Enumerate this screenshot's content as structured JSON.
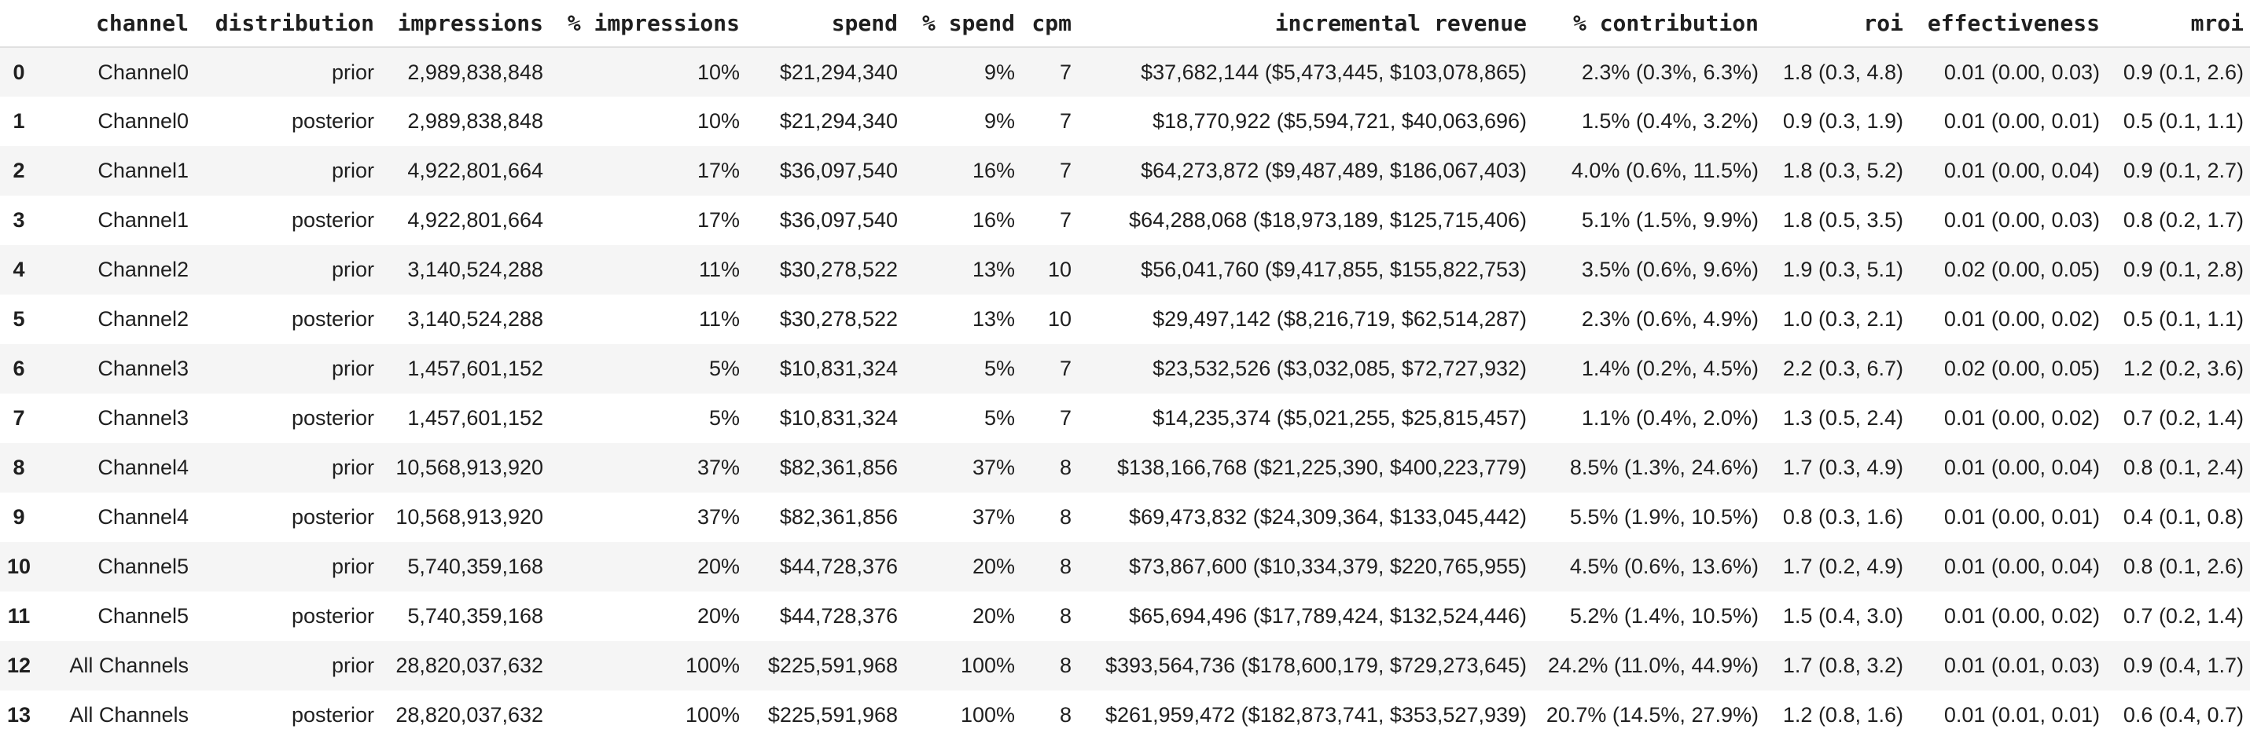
{
  "colors": {
    "text": "#1f1f1f",
    "row_stripe": "#f5f5f5",
    "header_border": "#e0e0e0",
    "background": "#ffffff"
  },
  "chart_data": {
    "type": "table",
    "columns": [
      "",
      "channel",
      "distribution",
      "impressions",
      "% impressions",
      "spend",
      "% spend",
      "cpm",
      "incremental revenue",
      "% contribution",
      "roi",
      "effectiveness",
      "mroi"
    ],
    "rows": [
      [
        "0",
        "Channel0",
        "prior",
        "2,989,838,848",
        "10%",
        "$21,294,340",
        "9%",
        "7",
        "$37,682,144 ($5,473,445, $103,078,865)",
        "2.3% (0.3%, 6.3%)",
        "1.8 (0.3, 4.8)",
        "0.01 (0.00, 0.03)",
        "0.9 (0.1, 2.6)"
      ],
      [
        "1",
        "Channel0",
        "posterior",
        "2,989,838,848",
        "10%",
        "$21,294,340",
        "9%",
        "7",
        "$18,770,922 ($5,594,721, $40,063,696)",
        "1.5% (0.4%, 3.2%)",
        "0.9 (0.3, 1.9)",
        "0.01 (0.00, 0.01)",
        "0.5 (0.1, 1.1)"
      ],
      [
        "2",
        "Channel1",
        "prior",
        "4,922,801,664",
        "17%",
        "$36,097,540",
        "16%",
        "7",
        "$64,273,872 ($9,487,489, $186,067,403)",
        "4.0% (0.6%, 11.5%)",
        "1.8 (0.3, 5.2)",
        "0.01 (0.00, 0.04)",
        "0.9 (0.1, 2.7)"
      ],
      [
        "3",
        "Channel1",
        "posterior",
        "4,922,801,664",
        "17%",
        "$36,097,540",
        "16%",
        "7",
        "$64,288,068 ($18,973,189, $125,715,406)",
        "5.1% (1.5%, 9.9%)",
        "1.8 (0.5, 3.5)",
        "0.01 (0.00, 0.03)",
        "0.8 (0.2, 1.7)"
      ],
      [
        "4",
        "Channel2",
        "prior",
        "3,140,524,288",
        "11%",
        "$30,278,522",
        "13%",
        "10",
        "$56,041,760 ($9,417,855, $155,822,753)",
        "3.5% (0.6%, 9.6%)",
        "1.9 (0.3, 5.1)",
        "0.02 (0.00, 0.05)",
        "0.9 (0.1, 2.8)"
      ],
      [
        "5",
        "Channel2",
        "posterior",
        "3,140,524,288",
        "11%",
        "$30,278,522",
        "13%",
        "10",
        "$29,497,142 ($8,216,719, $62,514,287)",
        "2.3% (0.6%, 4.9%)",
        "1.0 (0.3, 2.1)",
        "0.01 (0.00, 0.02)",
        "0.5 (0.1, 1.1)"
      ],
      [
        "6",
        "Channel3",
        "prior",
        "1,457,601,152",
        "5%",
        "$10,831,324",
        "5%",
        "7",
        "$23,532,526 ($3,032,085, $72,727,932)",
        "1.4% (0.2%, 4.5%)",
        "2.2 (0.3, 6.7)",
        "0.02 (0.00, 0.05)",
        "1.2 (0.2, 3.6)"
      ],
      [
        "7",
        "Channel3",
        "posterior",
        "1,457,601,152",
        "5%",
        "$10,831,324",
        "5%",
        "7",
        "$14,235,374 ($5,021,255, $25,815,457)",
        "1.1% (0.4%, 2.0%)",
        "1.3 (0.5, 2.4)",
        "0.01 (0.00, 0.02)",
        "0.7 (0.2, 1.4)"
      ],
      [
        "8",
        "Channel4",
        "prior",
        "10,568,913,920",
        "37%",
        "$82,361,856",
        "37%",
        "8",
        "$138,166,768 ($21,225,390, $400,223,779)",
        "8.5% (1.3%, 24.6%)",
        "1.7 (0.3, 4.9)",
        "0.01 (0.00, 0.04)",
        "0.8 (0.1, 2.4)"
      ],
      [
        "9",
        "Channel4",
        "posterior",
        "10,568,913,920",
        "37%",
        "$82,361,856",
        "37%",
        "8",
        "$69,473,832 ($24,309,364, $133,045,442)",
        "5.5% (1.9%, 10.5%)",
        "0.8 (0.3, 1.6)",
        "0.01 (0.00, 0.01)",
        "0.4 (0.1, 0.8)"
      ],
      [
        "10",
        "Channel5",
        "prior",
        "5,740,359,168",
        "20%",
        "$44,728,376",
        "20%",
        "8",
        "$73,867,600 ($10,334,379, $220,765,955)",
        "4.5% (0.6%, 13.6%)",
        "1.7 (0.2, 4.9)",
        "0.01 (0.00, 0.04)",
        "0.8 (0.1, 2.6)"
      ],
      [
        "11",
        "Channel5",
        "posterior",
        "5,740,359,168",
        "20%",
        "$44,728,376",
        "20%",
        "8",
        "$65,694,496 ($17,789,424, $132,524,446)",
        "5.2% (1.4%, 10.5%)",
        "1.5 (0.4, 3.0)",
        "0.01 (0.00, 0.02)",
        "0.7 (0.2, 1.4)"
      ],
      [
        "12",
        "All Channels",
        "prior",
        "28,820,037,632",
        "100%",
        "$225,591,968",
        "100%",
        "8",
        "$393,564,736 ($178,600,179, $729,273,645)",
        "24.2% (11.0%, 44.9%)",
        "1.7 (0.8, 3.2)",
        "0.01 (0.01, 0.03)",
        "0.9 (0.4, 1.7)"
      ],
      [
        "13",
        "All Channels",
        "posterior",
        "28,820,037,632",
        "100%",
        "$225,591,968",
        "100%",
        "8",
        "$261,959,472 ($182,873,741, $353,527,939)",
        "20.7% (14.5%, 27.9%)",
        "1.2 (0.8, 1.6)",
        "0.01 (0.01, 0.01)",
        "0.6 (0.4, 0.7)"
      ]
    ]
  }
}
